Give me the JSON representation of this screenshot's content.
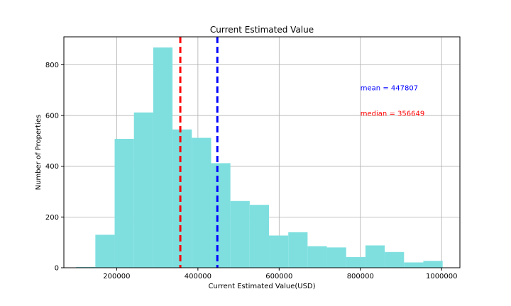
{
  "chart_data": {
    "type": "bar",
    "title": "Current Estimated Value",
    "xlabel": "Current Estimated Value(USD)",
    "ylabel": "Number of Properties",
    "xlim": [
      70000,
      1045000
    ],
    "ylim": [
      0,
      910
    ],
    "xticks": [
      200000,
      400000,
      600000,
      800000,
      1000000
    ],
    "yticks": [
      0,
      200,
      400,
      600,
      800
    ],
    "grid": true,
    "bar_color": "#7fdfdf",
    "bins": [
      {
        "x0": 100000,
        "x1": 147500,
        "count": 3
      },
      {
        "x0": 147500,
        "x1": 195000,
        "count": 130
      },
      {
        "x0": 195000,
        "x1": 242500,
        "count": 508
      },
      {
        "x0": 242500,
        "x1": 290000,
        "count": 612
      },
      {
        "x0": 290000,
        "x1": 337500,
        "count": 868
      },
      {
        "x0": 337500,
        "x1": 385000,
        "count": 545
      },
      {
        "x0": 385000,
        "x1": 432500,
        "count": 512
      },
      {
        "x0": 432500,
        "x1": 480000,
        "count": 412
      },
      {
        "x0": 480000,
        "x1": 527500,
        "count": 263
      },
      {
        "x0": 527500,
        "x1": 575000,
        "count": 248
      },
      {
        "x0": 575000,
        "x1": 622500,
        "count": 127
      },
      {
        "x0": 622500,
        "x1": 670000,
        "count": 140
      },
      {
        "x0": 670000,
        "x1": 717500,
        "count": 85
      },
      {
        "x0": 717500,
        "x1": 765000,
        "count": 80
      },
      {
        "x0": 765000,
        "x1": 812500,
        "count": 42
      },
      {
        "x0": 812500,
        "x1": 860000,
        "count": 88
      },
      {
        "x0": 860000,
        "x1": 907500,
        "count": 62
      },
      {
        "x0": 907500,
        "x1": 955000,
        "count": 21
      },
      {
        "x0": 955000,
        "x1": 1002500,
        "count": 27
      }
    ],
    "lines": [
      {
        "name": "median",
        "value": 356649,
        "color": "#ff0000",
        "label": "median = 356649",
        "label_x": 800000,
        "label_y": 610
      },
      {
        "name": "mean",
        "value": 447807,
        "color": "#0000ff",
        "label": "mean = 447807",
        "label_x": 800000,
        "label_y": 710
      }
    ]
  }
}
